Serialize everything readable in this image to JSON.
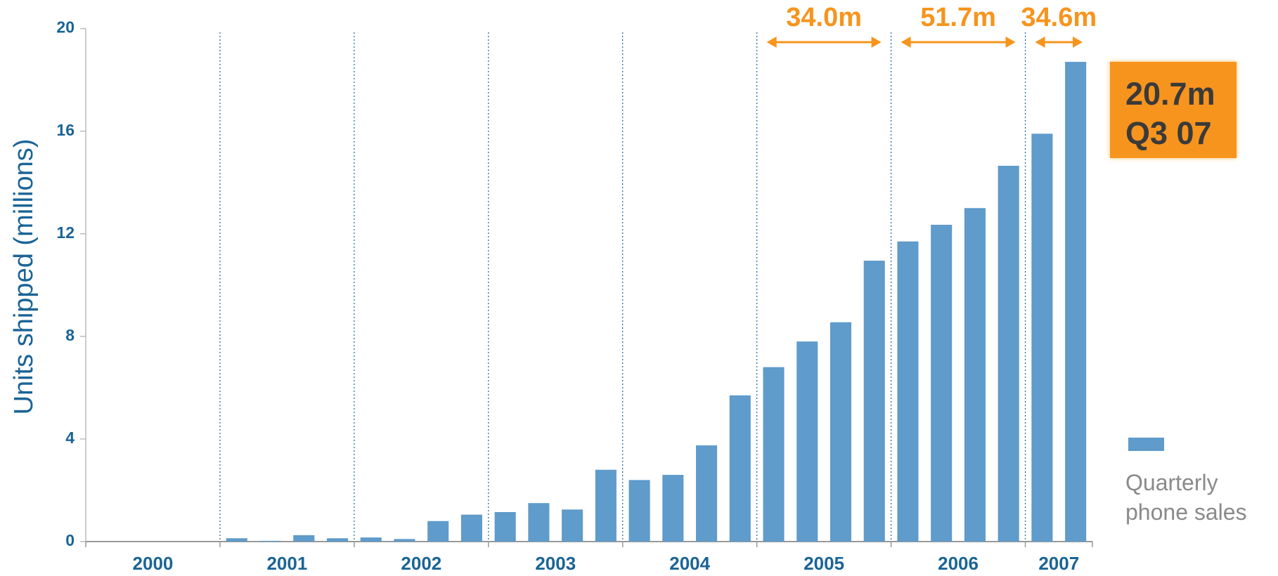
{
  "chart_data": {
    "type": "bar",
    "y_label": "Units shipped (millions)",
    "series": [
      {
        "name": "Quarterly phone sales",
        "color": "#5f9bcb",
        "values": [
          0,
          0,
          0,
          0,
          0.13,
          0.03,
          0.25,
          0.13,
          0.16,
          0.1,
          0.8,
          1.05,
          1.15,
          1.5,
          1.25,
          2.8,
          2.4,
          2.6,
          3.75,
          5.7,
          6.8,
          7.8,
          8.55,
          10.95,
          11.7,
          12.35,
          13.0,
          14.65,
          15.9,
          18.7
        ]
      }
    ],
    "groups": [
      {
        "label": "2000",
        "size": 4
      },
      {
        "label": "2001",
        "size": 4
      },
      {
        "label": "2002",
        "size": 4
      },
      {
        "label": "2003",
        "size": 4
      },
      {
        "label": "2004",
        "size": 4
      },
      {
        "label": "2005",
        "size": 4,
        "annotation": "34.0m"
      },
      {
        "label": "2006",
        "size": 4,
        "annotation": "51.7m"
      },
      {
        "label": "2007",
        "size": 2,
        "annotation": "34.6m"
      }
    ],
    "callout": {
      "value": "20.7m",
      "period": "Q3 07"
    },
    "ylim": [
      0,
      20
    ],
    "yticks": [
      0,
      4,
      8,
      12,
      16,
      20
    ],
    "annotation_color": "#f7941d",
    "text_color": "#1a6496"
  }
}
